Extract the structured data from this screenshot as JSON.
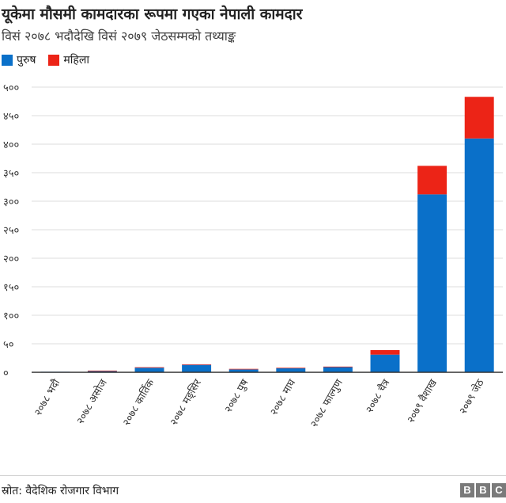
{
  "header": {
    "title": "यूकेमा मौसमी कामदारका रूपमा गएका नेपाली कामदार",
    "subtitle": "विसं २०७८ भदौदेखि विसं २०७९ जेठसम्मको तथ्याङ्क"
  },
  "footer": {
    "source": "स्रोत: वैदेशिक रोजगार विभाग",
    "logo_letters": [
      "B",
      "B",
      "C"
    ]
  },
  "colors": {
    "male": "#0a70c9",
    "female": "#ec2417",
    "axis": "#333333",
    "grid": "#dddddd"
  },
  "chart_data": {
    "type": "bar",
    "stacked": true,
    "categories": [
      "२०७८ भदौ",
      "२०७८ असोज",
      "२०७८ कार्तिक",
      "२०७८ मङ्सिर",
      "२०७८ पुष",
      "२०७८ माघ",
      "२०७८ फाल्गुण",
      "२०७८ चैत्र",
      "२०७९ वैशाख",
      "२०७९ जेठ"
    ],
    "series": [
      {
        "name": "पुरुष",
        "values": [
          1,
          2,
          8,
          13,
          5,
          7,
          9,
          31,
          312,
          410
        ]
      },
      {
        "name": "महिला",
        "values": [
          0,
          1,
          1,
          1,
          1,
          1,
          1,
          8,
          50,
          73
        ]
      }
    ],
    "ylim": [
      0,
      500
    ],
    "yticks": [
      0,
      50,
      100,
      150,
      200,
      250,
      300,
      350,
      400,
      450,
      500
    ],
    "ytick_labels": [
      "०",
      "५०",
      "१००",
      "१५०",
      "२००",
      "२५०",
      "३००",
      "३५०",
      "४००",
      "४५०",
      "५००"
    ],
    "grid": true,
    "legend": "top-left"
  }
}
